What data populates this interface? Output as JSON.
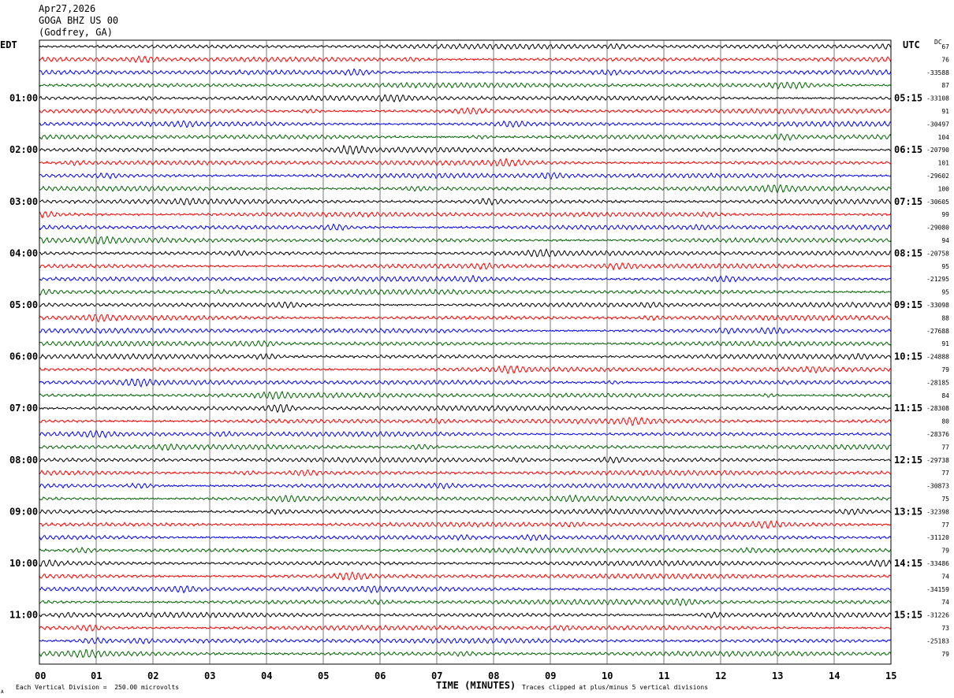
{
  "header": {
    "date": "Apr27,2026",
    "station": "GOGA BHZ US 00",
    "location": "(Godfrey, GA)"
  },
  "axis_labels": {
    "left_zone": "EDT",
    "right_zone": "UTC",
    "dc_label": "DC",
    "x_title": "TIME (MINUTES)"
  },
  "footer": {
    "scale_note": "Each Vertical Division =  250.00 microvolts",
    "clip_note": "Traces clipped at plus/minus 5 vertical divisions",
    "corner_mark": "A"
  },
  "colors": {
    "trace_cycle": [
      "#000000",
      "#ff0000",
      "#0000ff",
      "#006400"
    ],
    "grid": "#000000"
  },
  "chart_data": {
    "type": "line",
    "title": "GOGA BHZ US 00",
    "xlabel": "TIME (MINUTES)",
    "x_range": [
      0,
      15
    ],
    "x_ticks": [
      "00",
      "01",
      "02",
      "03",
      "04",
      "05",
      "06",
      "07",
      "08",
      "09",
      "10",
      "11",
      "12",
      "13",
      "14",
      "15"
    ],
    "rows_per_hour": 4,
    "row_interval_minutes": 15,
    "row_count": 48,
    "scale_microvolts_per_division": 250.0,
    "clip_divisions": 5,
    "edt_hour_labels": [
      "01:00",
      "02:00",
      "03:00",
      "04:00",
      "05:00",
      "06:00",
      "07:00",
      "08:00",
      "09:00",
      "10:00",
      "11:00"
    ],
    "utc_hour_labels": [
      "05:15",
      "06:15",
      "07:15",
      "08:15",
      "09:15",
      "10:15",
      "11:15",
      "12:15",
      "13:15",
      "14:15",
      "15:15"
    ],
    "dc_offsets": [
      "67",
      "76",
      "-33588",
      "87",
      "-33108",
      "91",
      "-30497",
      "104",
      "-20790",
      "101",
      "-29602",
      "100",
      "-30605",
      "99",
      "-29080",
      "94",
      "-20758",
      "95",
      "-21295",
      "95",
      "-33098",
      "88",
      "-27688",
      "91",
      "-24888",
      "79",
      "-28185",
      "84",
      "-28308",
      "80",
      "-28376",
      "77",
      "-29738",
      "77",
      "-30873",
      "75",
      "-32398",
      "77",
      "-31120",
      "79",
      "-33486",
      "74",
      "-34159",
      "74",
      "-31226",
      "73",
      "-25183",
      "79"
    ]
  }
}
